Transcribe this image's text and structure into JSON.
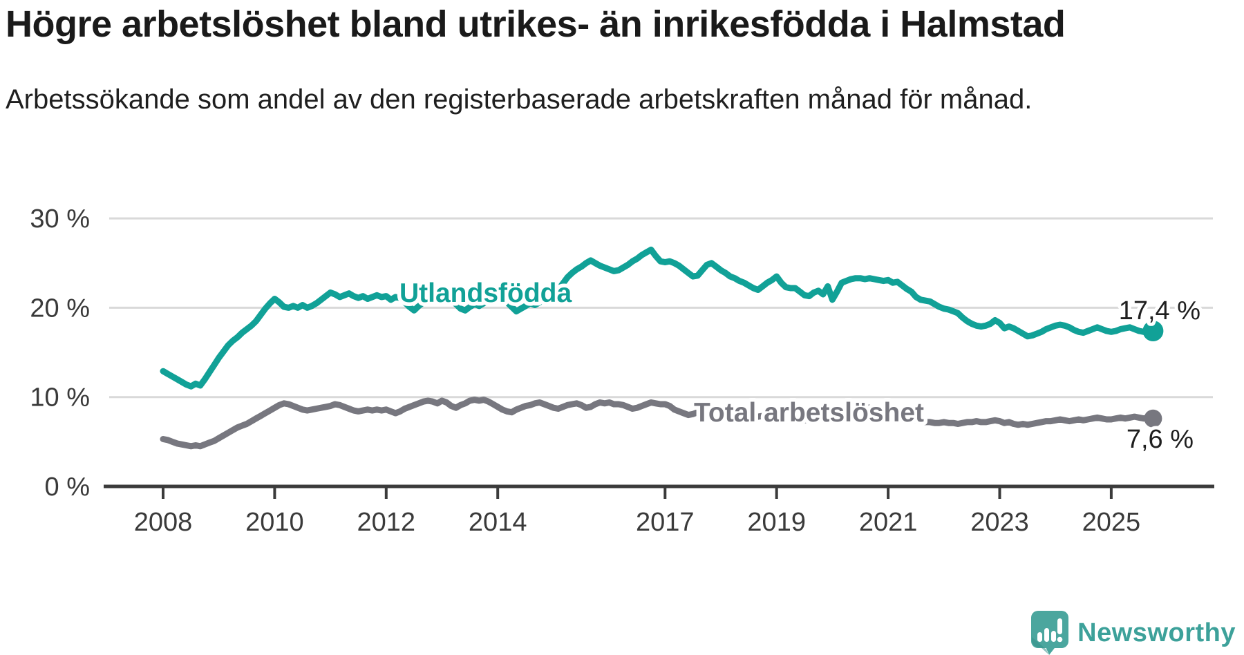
{
  "chart_data": {
    "type": "line",
    "title": "Högre arbetslöshet bland utrikes- än inrikesfödda i Halmstad",
    "subtitle": "Arbetssökande som andel av den registerbaserade arbetskraften månad för månad.",
    "unit": "%",
    "grid": "horizontal",
    "legend_position": "inline-labels",
    "ylim": [
      0,
      32
    ],
    "y_axis": {
      "ticks": [
        {
          "value": 30,
          "label": "30 %"
        },
        {
          "value": 20,
          "label": "20 %"
        },
        {
          "value": 10,
          "label": "10 %"
        },
        {
          "value": 0,
          "label": "0 %"
        }
      ]
    },
    "x_axis": {
      "tick_years": [
        2008,
        2010,
        2012,
        2014,
        2017,
        2019,
        2021,
        2023,
        2025
      ],
      "tick_labels": [
        "2008",
        "2010",
        "2012",
        "2014",
        "2017",
        "2019",
        "2021",
        "2023",
        "2025"
      ]
    },
    "series": [
      {
        "name": "Utlandsfödda",
        "color": "#11a197",
        "start_year": 2008,
        "frequency": "monthly",
        "end_value": 17.4,
        "end_label": "17,4 %",
        "values": [
          12.9,
          12.6,
          12.3,
          12.0,
          11.7,
          11.4,
          11.2,
          11.5,
          11.3,
          12.0,
          12.8,
          13.6,
          14.4,
          15.1,
          15.8,
          16.3,
          16.7,
          17.2,
          17.6,
          18.0,
          18.5,
          19.2,
          19.9,
          20.5,
          21.0,
          20.6,
          20.1,
          20.0,
          20.2,
          20.0,
          20.3,
          20.0,
          20.2,
          20.5,
          20.9,
          21.3,
          21.7,
          21.5,
          21.2,
          21.4,
          21.6,
          21.3,
          21.1,
          21.3,
          21.0,
          21.2,
          21.4,
          21.2,
          21.3,
          20.9,
          21.2,
          21.1,
          20.6,
          20.1,
          19.7,
          20.2,
          20.6,
          20.9,
          21.1,
          21.3,
          21.4,
          21.1,
          20.8,
          20.4,
          19.9,
          19.7,
          20.1,
          20.4,
          20.2,
          20.5,
          20.8,
          21.0,
          21.2,
          21.0,
          20.6,
          20.1,
          19.6,
          19.9,
          20.2,
          20.5,
          20.3,
          20.6,
          20.9,
          21.1,
          21.4,
          22.0,
          22.7,
          23.4,
          23.9,
          24.3,
          24.6,
          25.0,
          25.3,
          25.0,
          24.7,
          24.5,
          24.3,
          24.1,
          24.2,
          24.5,
          24.8,
          25.2,
          25.5,
          25.9,
          26.2,
          26.5,
          25.8,
          25.2,
          25.1,
          25.2,
          25.0,
          24.7,
          24.3,
          23.9,
          23.5,
          23.6,
          24.2,
          24.8,
          25.0,
          24.6,
          24.2,
          23.9,
          23.5,
          23.3,
          23.0,
          22.8,
          22.5,
          22.2,
          22.0,
          22.4,
          22.8,
          23.1,
          23.5,
          22.8,
          22.3,
          22.2,
          22.2,
          21.8,
          21.4,
          21.3,
          21.7,
          21.9,
          21.5,
          22.4,
          20.9,
          21.8,
          22.8,
          23.0,
          23.2,
          23.3,
          23.3,
          23.2,
          23.3,
          23.2,
          23.1,
          23.0,
          23.1,
          22.8,
          22.9,
          22.5,
          22.1,
          21.8,
          21.2,
          20.9,
          20.8,
          20.7,
          20.4,
          20.1,
          19.9,
          19.8,
          19.6,
          19.4,
          18.9,
          18.5,
          18.2,
          18.0,
          17.9,
          18.0,
          18.2,
          18.6,
          18.3,
          17.7,
          17.9,
          17.7,
          17.4,
          17.1,
          16.8,
          16.9,
          17.1,
          17.3,
          17.6,
          17.8,
          18.0,
          18.1,
          18.0,
          17.8,
          17.5,
          17.3,
          17.2,
          17.4,
          17.6,
          17.8,
          17.6,
          17.4,
          17.3,
          17.4,
          17.6,
          17.7,
          17.8,
          17.6,
          17.4,
          17.3,
          17.5,
          17.4
        ]
      },
      {
        "name": "Total arbetslöshet",
        "color": "#77777f",
        "start_year": 2008,
        "frequency": "monthly",
        "end_value": 7.6,
        "end_label": "7,6 %",
        "values": [
          5.3,
          5.2,
          5.0,
          4.8,
          4.7,
          4.6,
          4.5,
          4.6,
          4.5,
          4.7,
          4.9,
          5.1,
          5.4,
          5.7,
          6.0,
          6.3,
          6.6,
          6.8,
          7.0,
          7.3,
          7.6,
          7.9,
          8.2,
          8.5,
          8.8,
          9.1,
          9.3,
          9.2,
          9.0,
          8.8,
          8.6,
          8.5,
          8.6,
          8.7,
          8.8,
          8.9,
          9.0,
          9.2,
          9.1,
          8.9,
          8.7,
          8.5,
          8.4,
          8.5,
          8.6,
          8.5,
          8.6,
          8.5,
          8.6,
          8.4,
          8.2,
          8.4,
          8.7,
          8.9,
          9.1,
          9.3,
          9.5,
          9.6,
          9.5,
          9.3,
          9.6,
          9.4,
          9.0,
          8.8,
          9.1,
          9.3,
          9.6,
          9.7,
          9.6,
          9.7,
          9.5,
          9.2,
          8.9,
          8.6,
          8.4,
          8.3,
          8.6,
          8.8,
          9.0,
          9.1,
          9.3,
          9.4,
          9.2,
          9.0,
          8.8,
          8.7,
          8.9,
          9.1,
          9.2,
          9.3,
          9.1,
          8.8,
          8.9,
          9.2,
          9.4,
          9.3,
          9.4,
          9.2,
          9.2,
          9.1,
          8.9,
          8.7,
          8.8,
          9.0,
          9.2,
          9.4,
          9.3,
          9.2,
          9.2,
          9.0,
          8.6,
          8.4,
          8.2,
          8.0,
          8.1,
          8.3,
          8.5,
          8.6,
          8.5,
          8.4,
          8.3,
          8.2,
          8.0,
          7.9,
          7.8,
          7.7,
          7.6,
          7.7,
          7.8,
          7.9,
          7.8,
          7.7,
          7.7,
          7.6,
          7.5,
          7.4,
          7.4,
          7.3,
          7.4,
          7.5,
          7.6,
          7.7,
          7.6,
          7.6,
          7.8,
          8.1,
          8.5,
          8.8,
          9.0,
          9.1,
          9.0,
          8.9,
          8.8,
          8.7,
          8.6,
          8.5,
          8.4,
          8.2,
          8.0,
          7.8,
          7.7,
          7.5,
          7.4,
          7.3,
          7.2,
          7.2,
          7.1,
          7.1,
          7.2,
          7.1,
          7.1,
          7.0,
          7.1,
          7.2,
          7.2,
          7.3,
          7.2,
          7.2,
          7.3,
          7.4,
          7.3,
          7.1,
          7.2,
          7.0,
          6.9,
          7.0,
          6.9,
          7.0,
          7.1,
          7.2,
          7.3,
          7.3,
          7.4,
          7.5,
          7.4,
          7.3,
          7.4,
          7.5,
          7.4,
          7.5,
          7.6,
          7.7,
          7.6,
          7.5,
          7.5,
          7.6,
          7.7,
          7.6,
          7.7,
          7.8,
          7.7,
          7.6,
          7.7,
          7.6
        ]
      }
    ],
    "colors": {
      "grid": "#d9d9d9",
      "axis": "#3b3b3b",
      "tick_text": "#3a3a3a",
      "value_label_text": "#1f1f1f"
    }
  },
  "logo": {
    "text": "Newsworthy"
  }
}
